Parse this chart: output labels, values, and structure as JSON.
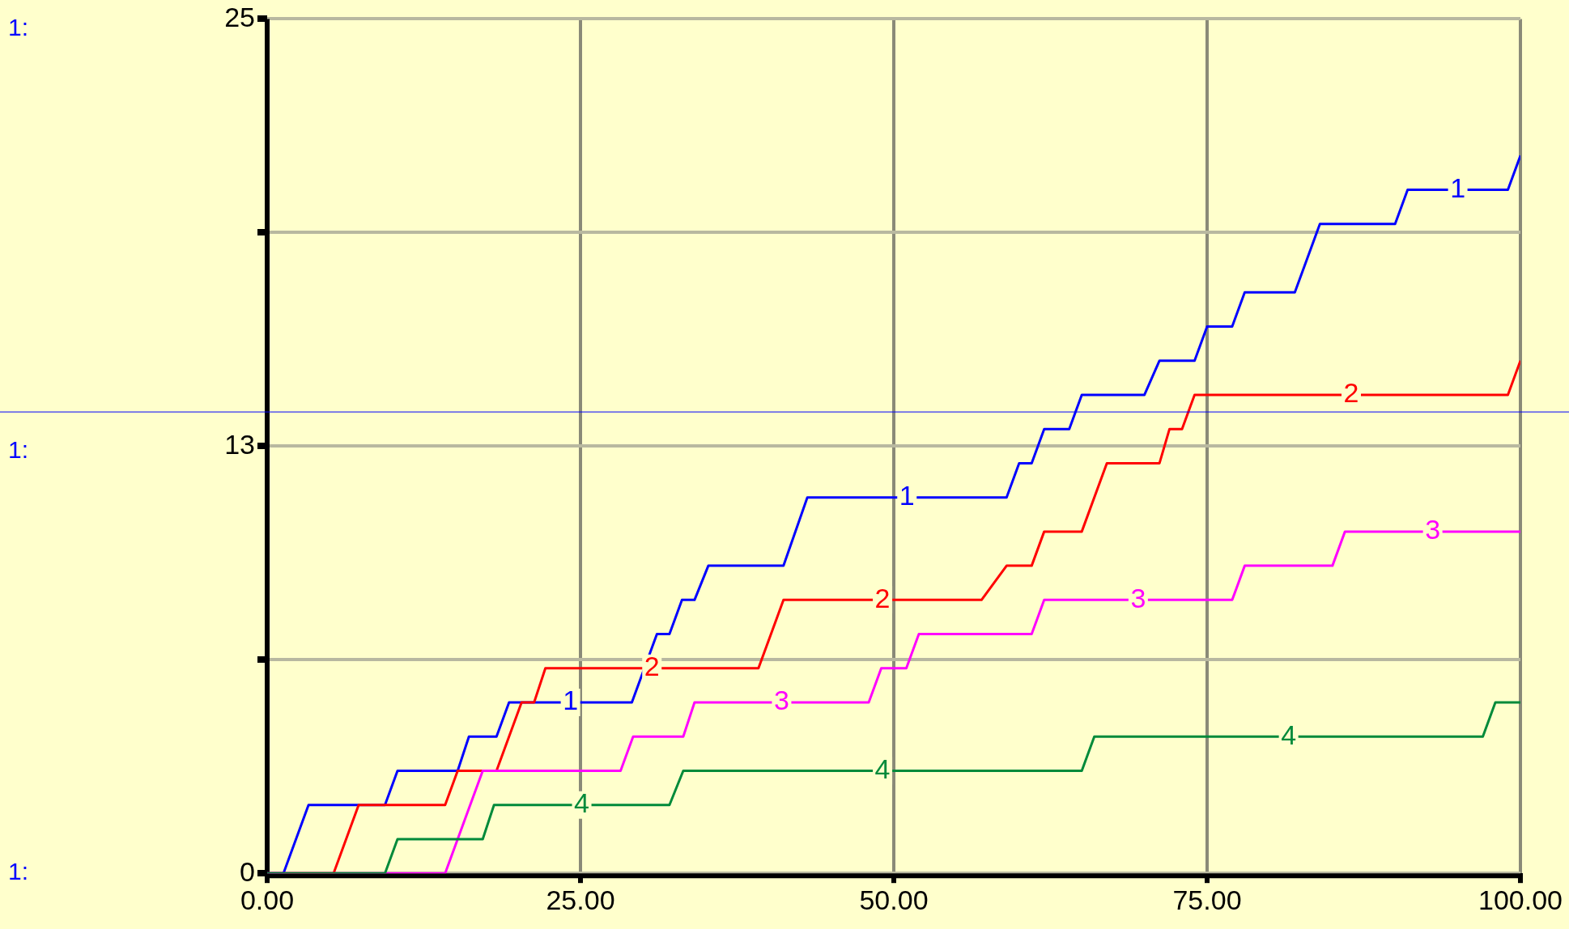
{
  "chart_data": {
    "type": "line",
    "xlim": [
      0,
      100
    ],
    "xticks": [
      {
        "value": 0,
        "label": "0.00"
      },
      {
        "value": 25,
        "label": "25.00"
      },
      {
        "value": 50,
        "label": "50.00"
      },
      {
        "value": 75,
        "label": "75.00"
      },
      {
        "value": 100,
        "label": "100.00"
      }
    ],
    "ylim": [
      0,
      25
    ],
    "yticks": [
      0,
      {
        "value": 6.25,
        "label": null
      },
      {
        "value": 12.5,
        "label": "13"
      },
      {
        "value": 18.75,
        "label": null
      },
      25
    ],
    "grid": true,
    "legend": false,
    "marker": "none",
    "line_style": "solid",
    "annotations": [
      "1:",
      "1:",
      "1:"
    ],
    "ref_lines": [
      {
        "axis": "y",
        "value": 13.5,
        "color": "#0000ff"
      }
    ],
    "series": [
      {
        "name": "1",
        "color": "#0000ff",
        "x": [
          0,
          1.3,
          3.3,
          9.4,
          10.4,
          15.2,
          16.1,
          18.3,
          19.3,
          29.1,
          31.1,
          32.1,
          33.1,
          34.1,
          35.2,
          41.2,
          43.1,
          59,
          60,
          61,
          62,
          64,
          65,
          70,
          71.2,
          74,
          75,
          77,
          78,
          82,
          84,
          90,
          91,
          99,
          100
        ],
        "values": [
          0,
          0,
          2,
          2,
          3,
          3,
          4,
          4,
          5,
          5,
          7,
          7,
          8,
          8,
          9,
          9,
          11,
          11,
          12,
          12,
          13,
          13,
          14,
          14,
          15,
          15,
          16,
          16,
          17,
          17,
          19,
          19,
          20,
          20,
          21
        ]
      },
      {
        "name": "2",
        "color": "#ff0000",
        "x": [
          0,
          5.3,
          7.3,
          14.2,
          15.2,
          18.3,
          20.3,
          21.3,
          22.2,
          39.2,
          41.2,
          57,
          59,
          61,
          62,
          65,
          67,
          71.2,
          72,
          73,
          74,
          99,
          100
        ],
        "values": [
          0,
          0,
          2,
          2,
          3,
          3,
          5,
          5,
          6,
          6,
          8,
          8,
          9,
          9,
          10,
          10,
          12,
          12,
          13,
          13,
          14,
          14,
          15
        ]
      },
      {
        "name": "3",
        "color": "#ff00ff",
        "x": [
          0,
          14.2,
          17.2,
          28.2,
          29.2,
          33.2,
          34.1,
          48,
          49,
          51,
          52,
          61,
          62,
          77,
          78,
          85,
          86,
          100
        ],
        "values": [
          0,
          0,
          3,
          3,
          4,
          4,
          5,
          5,
          6,
          6,
          7,
          7,
          8,
          8,
          9,
          9,
          10,
          10
        ]
      },
      {
        "name": "4",
        "color": "#008a3a",
        "x": [
          0,
          9.4,
          10.4,
          17.2,
          18.1,
          32.1,
          33.2,
          65,
          66,
          97,
          98,
          100
        ],
        "values": [
          0,
          0,
          1,
          1,
          2,
          2,
          3,
          3,
          4,
          4,
          5,
          5
        ]
      }
    ]
  }
}
